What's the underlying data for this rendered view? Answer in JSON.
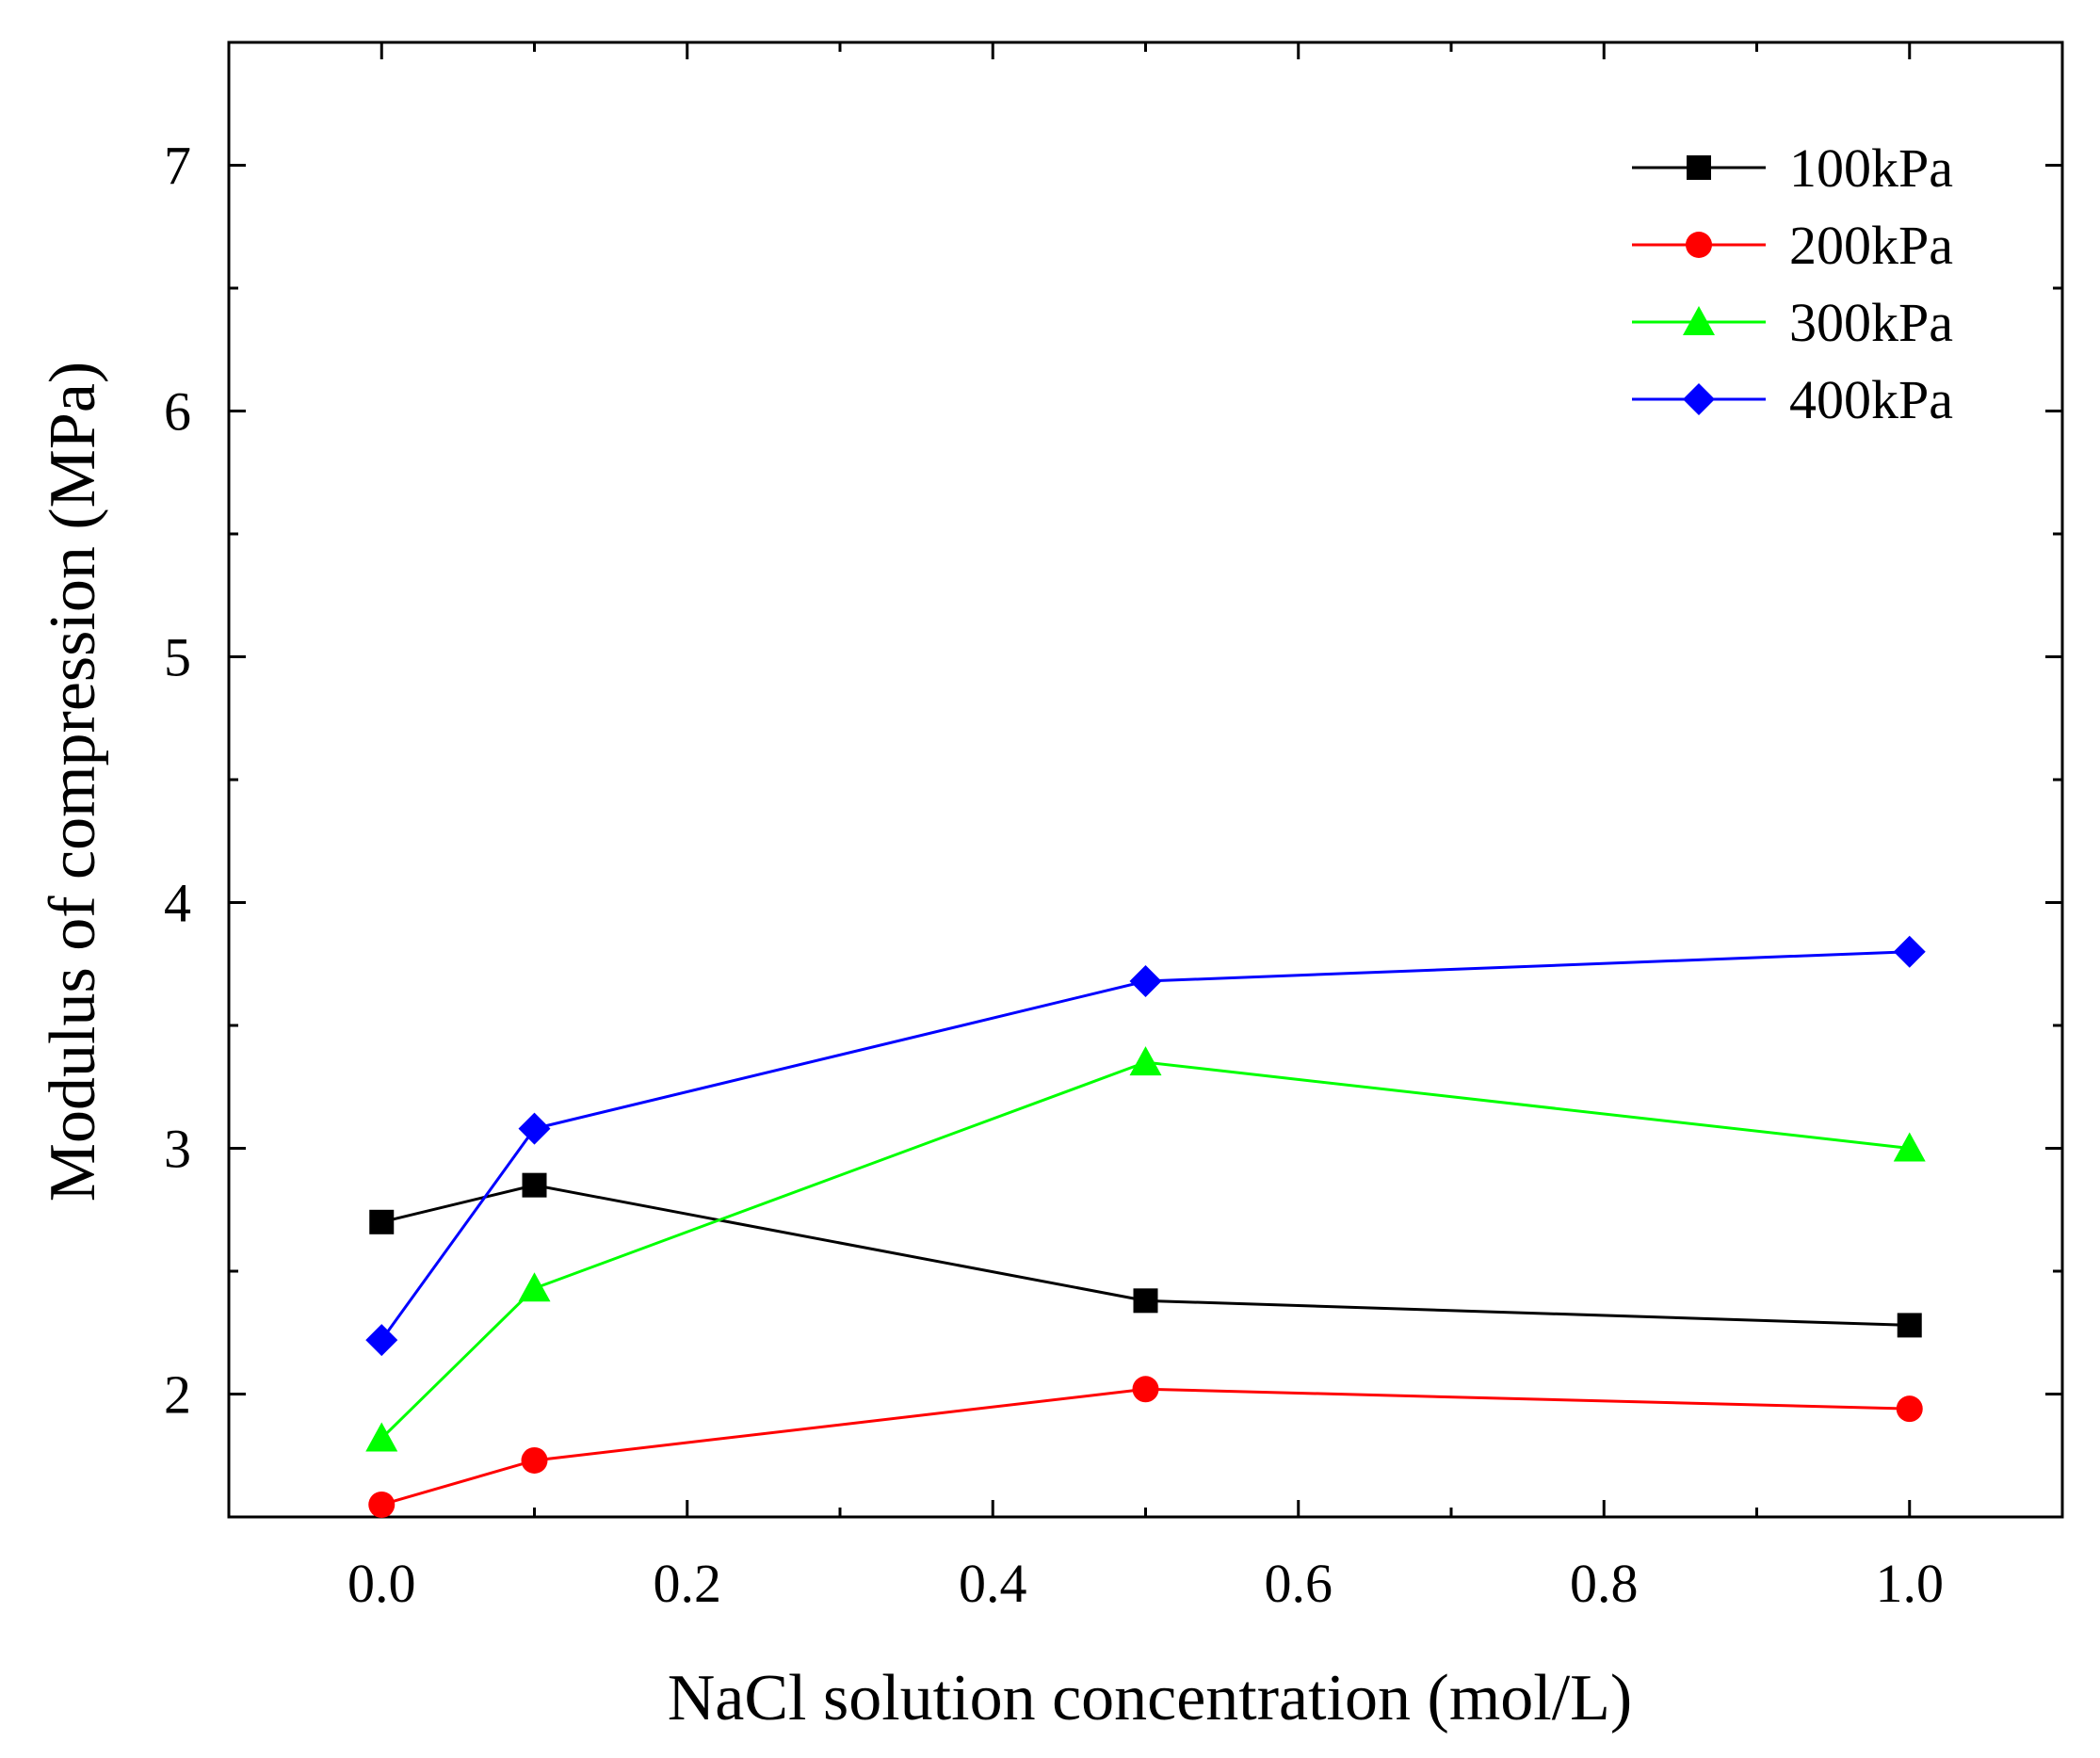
{
  "chart_data": {
    "type": "line",
    "title": "",
    "xlabel": "NaCl solution concentration (mol/L)",
    "ylabel": "Modulus of compression (MPa)",
    "xlim": [
      -0.1,
      1.1
    ],
    "ylim": [
      1.5,
      7.5
    ],
    "xticks": [
      "0.0",
      "0.2",
      "0.4",
      "0.6",
      "0.8",
      "1.0"
    ],
    "xtick_values": [
      0.0,
      0.2,
      0.4,
      0.6,
      0.8,
      1.0
    ],
    "yticks": [
      "2",
      "3",
      "4",
      "5",
      "6",
      "7"
    ],
    "ytick_values": [
      2,
      3,
      4,
      5,
      6,
      7
    ],
    "grid": false,
    "legend_position": "top-right",
    "x": [
      0.0,
      0.1,
      0.5,
      1.0
    ],
    "series": [
      {
        "name": "100kPa",
        "marker": "square",
        "color": "#000000",
        "values": [
          2.7,
          2.85,
          2.38,
          2.28
        ]
      },
      {
        "name": "200kPa",
        "marker": "circle",
        "color": "#ff0000",
        "values": [
          1.55,
          1.73,
          2.02,
          1.94
        ]
      },
      {
        "name": "300kPa",
        "marker": "triangle",
        "color": "#00ff00",
        "values": [
          1.82,
          2.43,
          3.35,
          3.0
        ]
      },
      {
        "name": "400kPa",
        "marker": "diamond",
        "color": "#0000ff",
        "values": [
          2.22,
          3.08,
          3.68,
          3.8
        ]
      }
    ]
  }
}
